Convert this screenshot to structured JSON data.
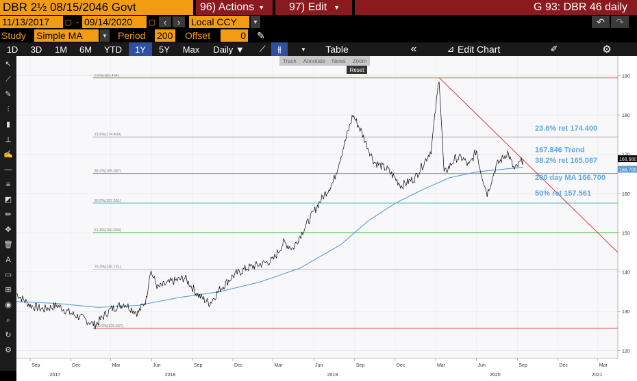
{
  "header": {
    "security": "DBR 2½ 08/15/2046 Govt",
    "actions_label": "96) Actions",
    "edit_label": "97) Edit",
    "window_title": "G 93: DBR 46 daily"
  },
  "range": {
    "start_date": "11/13/2017",
    "separator": "-",
    "end_date": "09/14/2020",
    "currency": "Local CCY"
  },
  "study": {
    "label": "Study",
    "type": "Simple MA",
    "period_label": "Period",
    "period": "200",
    "offset_label": "Offset",
    "offset": "0"
  },
  "timeframes": [
    "1D",
    "3D",
    "1M",
    "6M",
    "YTD",
    "1Y",
    "5Y",
    "Max"
  ],
  "selected_timeframe": "1Y",
  "frequency": "Daily ▼",
  "toolbar": {
    "table_label": "Table",
    "edit_chart_label": "Edit Chart"
  },
  "floating_tools": [
    "Track",
    "Annotate",
    "News",
    "Zoom"
  ],
  "reset_label": "Reset",
  "left_tools": [
    "cursor-icon",
    "line-icon",
    "pen-icon",
    "bars-icon",
    "candles-icon",
    "ruler-icon",
    "brush-icon",
    "hline-icon",
    "fib-icon",
    "shape-icon",
    "pencil-icon",
    "move-icon",
    "trash-icon",
    "text-icon",
    "rect-icon",
    "grid-icon",
    "eye-icon",
    "zoom-icon",
    "refresh-icon",
    "settings-icon"
  ],
  "colors": {
    "price": "#000000",
    "ma": "#5b9bd5",
    "trend": "#e03030",
    "fib_0": "#e05050",
    "fib_23": "#aaaaaa",
    "fib_38": "#22bb22",
    "fib_50": "#22aacc",
    "fib_61": "#22bb22",
    "fib_76": "#aaaaaa",
    "fib_100": "#e05050",
    "annotation": "#5fa8e6"
  },
  "chart_data": {
    "type": "line",
    "title": "",
    "xlabel": "",
    "ylabel": "",
    "ylim": [
      118,
      195
    ],
    "xlim": [
      "2017-08-01",
      "2021-04-15"
    ],
    "grid": true,
    "yticks": [
      120,
      130,
      140,
      150,
      160,
      170,
      180,
      190
    ],
    "xticks_month": [
      "Sep",
      "Dec",
      "Mar",
      "Jun",
      "Sep",
      "Dec",
      "Mar",
      "Jun",
      "Sep",
      "Dec",
      "Mar",
      "Jun",
      "Sep",
      "Dec",
      "Mar"
    ],
    "xticks_month_dates": [
      "2017-09-01",
      "2017-12-01",
      "2018-03-01",
      "2018-06-01",
      "2018-09-01",
      "2018-12-01",
      "2019-03-01",
      "2019-06-01",
      "2019-09-01",
      "2019-12-01",
      "2020-03-01",
      "2020-06-01",
      "2020-09-01",
      "2020-12-01",
      "2021-03-01"
    ],
    "xticks_year": [
      "2017",
      "2018",
      "2019",
      "2020",
      "2021"
    ],
    "xticks_year_dates": [
      "2017-10-15",
      "2018-07-01",
      "2019-07-01",
      "2020-07-01",
      "2021-02-15"
    ],
    "series": [
      {
        "name": "",
        "type": "price",
        "points": [
          [
            "2017-08-01",
            134.5
          ],
          [
            "2017-09-01",
            131.5
          ],
          [
            "2017-10-01",
            130.5
          ],
          [
            "2017-11-01",
            131.5
          ],
          [
            "2017-12-01",
            129.5
          ],
          [
            "2018-01-01",
            128.0
          ],
          [
            "2018-01-25",
            126.5
          ],
          [
            "2018-02-15",
            129.0
          ],
          [
            "2018-03-01",
            130.5
          ],
          [
            "2018-04-01",
            132.0
          ],
          [
            "2018-05-01",
            129.5
          ],
          [
            "2018-05-20",
            133.0
          ],
          [
            "2018-05-29",
            140.5
          ],
          [
            "2018-06-15",
            136.0
          ],
          [
            "2018-07-15",
            137.5
          ],
          [
            "2018-08-15",
            138.5
          ],
          [
            "2018-09-15",
            134.0
          ],
          [
            "2018-10-10",
            132.0
          ],
          [
            "2018-11-01",
            135.5
          ],
          [
            "2018-12-01",
            139.0
          ],
          [
            "2019-01-01",
            141.0
          ],
          [
            "2019-02-01",
            142.0
          ],
          [
            "2019-03-01",
            143.0
          ],
          [
            "2019-03-25",
            147.5
          ],
          [
            "2019-04-15",
            146.0
          ],
          [
            "2019-05-15",
            152.0
          ],
          [
            "2019-06-15",
            158.0
          ],
          [
            "2019-07-15",
            163.0
          ],
          [
            "2019-08-15",
            175.0
          ],
          [
            "2019-08-28",
            180.0
          ],
          [
            "2019-09-15",
            176.0
          ],
          [
            "2019-10-15",
            168.0
          ],
          [
            "2019-11-15",
            166.0
          ],
          [
            "2019-12-15",
            162.0
          ],
          [
            "2020-01-15",
            164.0
          ],
          [
            "2020-02-20",
            171.0
          ],
          [
            "2020-03-09",
            189.5
          ],
          [
            "2020-03-20",
            165.0
          ],
          [
            "2020-04-15",
            169.0
          ],
          [
            "2020-05-01",
            169.0
          ],
          [
            "2020-05-15",
            167.0
          ],
          [
            "2020-06-01",
            171.0
          ],
          [
            "2020-06-10",
            166.0
          ],
          [
            "2020-06-25",
            160.0
          ],
          [
            "2020-07-15",
            167.0
          ],
          [
            "2020-08-10",
            170.5
          ],
          [
            "2020-08-25",
            166.0
          ],
          [
            "2020-09-14",
            168.68
          ]
        ]
      },
      {
        "name": "200 day MA",
        "type": "ma",
        "points": [
          [
            "2017-08-01",
            132.5
          ],
          [
            "2017-11-01",
            132.0
          ],
          [
            "2018-02-01",
            131.0
          ],
          [
            "2018-05-01",
            131.5
          ],
          [
            "2018-08-01",
            133.5
          ],
          [
            "2018-11-01",
            135.0
          ],
          [
            "2019-02-01",
            137.5
          ],
          [
            "2019-05-01",
            141.0
          ],
          [
            "2019-08-01",
            147.0
          ],
          [
            "2019-10-01",
            153.0
          ],
          [
            "2019-12-01",
            157.5
          ],
          [
            "2020-02-01",
            161.0
          ],
          [
            "2020-04-01",
            164.0
          ],
          [
            "2020-06-01",
            165.5
          ],
          [
            "2020-09-14",
            166.7
          ]
        ]
      }
    ],
    "trendline": {
      "start": [
        "2020-03-09",
        189.5
      ],
      "end": [
        "2021-04-15",
        145.0
      ],
      "value": 167.846
    },
    "fib_levels": [
      {
        "pct_label": "0.0%",
        "price": 189.454,
        "axis_label": "0.0%(189.454)"
      },
      {
        "pct_label": "23.6%",
        "price": 174.4,
        "axis_label": "23.6%(174.400)"
      },
      {
        "pct_label": "38.2%",
        "price": 165.087,
        "axis_label": "38.2%(165.087)"
      },
      {
        "pct_label": "50.0%",
        "price": 157.561,
        "axis_label": "50.0%(157.561)"
      },
      {
        "pct_label": "61.8%",
        "price": 150.034,
        "axis_label": "61.8%(150.034)"
      },
      {
        "pct_label": "76.4%",
        "price": 140.721,
        "axis_label": "76.4%(140.721)"
      },
      {
        "pct_label": "100.0%",
        "price": 125.667,
        "axis_label": "100.0%(125.667)"
      }
    ],
    "annotations": [
      "23.6% ret 174.400",
      "167.846 Trend",
      "38.2% ret 165.087",
      "200 day MA 166.700",
      "50% ret 157.561"
    ],
    "last_price_label": "168.680",
    "last_ma_label": "166.700"
  }
}
